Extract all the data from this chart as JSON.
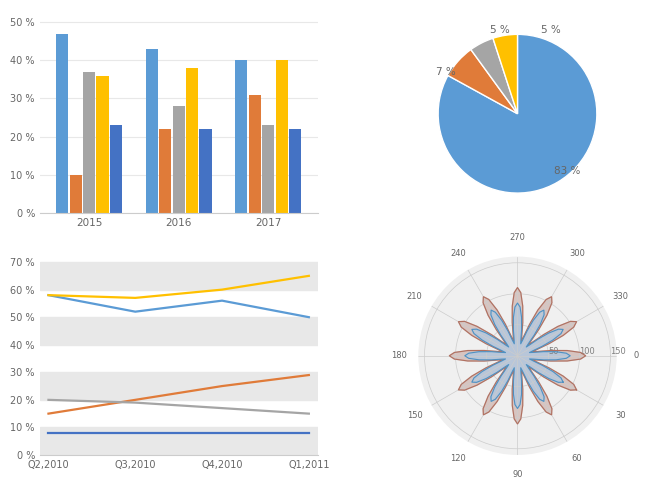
{
  "bar_categories": [
    2015,
    2016,
    2017
  ],
  "bar_series": [
    {
      "values": [
        47,
        43,
        40
      ],
      "color": "#5b9bd5"
    },
    {
      "values": [
        10,
        22,
        31
      ],
      "color": "#e07b39"
    },
    {
      "values": [
        37,
        28,
        23
      ],
      "color": "#a5a5a5"
    },
    {
      "values": [
        36,
        38,
        40
      ],
      "color": "#ffc000"
    },
    {
      "values": [
        23,
        22,
        22
      ],
      "color": "#4472c4"
    }
  ],
  "bar_ylim": [
    0,
    52
  ],
  "bar_yticks": [
    0,
    10,
    20,
    30,
    40,
    50
  ],
  "pie_values": [
    83,
    7,
    5,
    5
  ],
  "pie_colors": [
    "#5b9bd5",
    "#e07b39",
    "#a5a5a5",
    "#ffc000"
  ],
  "pie_labels": [
    "83 %",
    "7 %",
    "5 %",
    "5 %"
  ],
  "line_x": [
    0,
    1,
    2,
    3
  ],
  "line_xlabels": [
    "Q2,2010",
    "Q3,2010",
    "Q4,2010",
    "Q1,2011"
  ],
  "line_series": [
    {
      "values": [
        58,
        52,
        56,
        50
      ],
      "color": "#5b9bd5"
    },
    {
      "values": [
        58,
        57,
        60,
        65
      ],
      "color": "#ffc000"
    },
    {
      "values": [
        15,
        20,
        25,
        29
      ],
      "color": "#e07b39"
    },
    {
      "values": [
        20,
        19,
        17,
        15
      ],
      "color": "#a5a5a5"
    },
    {
      "values": [
        8,
        8,
        8,
        8
      ],
      "color": "#4472c4"
    }
  ],
  "line_ylim": [
    0,
    72
  ],
  "line_yticks": [
    0,
    10,
    20,
    30,
    40,
    50,
    60,
    70
  ],
  "bg_color": "#ffffff",
  "grid_color": "#e0e0e0",
  "text_color": "#666666"
}
